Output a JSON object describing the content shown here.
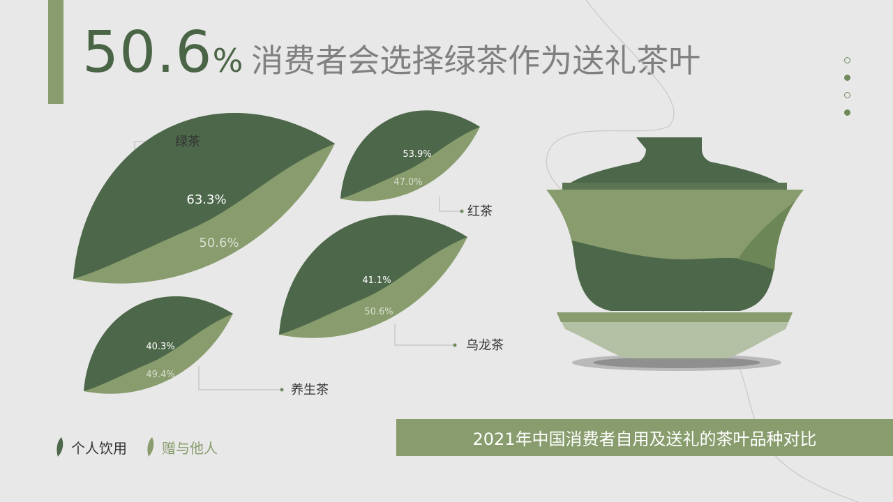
{
  "headline": {
    "number": "50.6",
    "percent_sign": "%",
    "text": "消费者会选择绿茶作为送礼茶叶"
  },
  "caption": "2021年中国消费者自用及送礼的茶叶品种对比",
  "legend": {
    "personal": "个人饮用",
    "gift": "赠与他人"
  },
  "colors": {
    "personal": "#4c6749",
    "gift": "#889c6d",
    "accent": "#889c6d",
    "background": "#e8e8e8",
    "headline_number": "#4a6446",
    "headline_text": "#808080"
  },
  "chart_data": {
    "type": "bar",
    "categories": [
      "绿茶",
      "红茶",
      "乌龙茶",
      "养生茶"
    ],
    "series": [
      {
        "name": "个人饮用",
        "values": [
          63.3,
          53.9,
          41.1,
          40.3
        ]
      },
      {
        "name": "赠与他人",
        "values": [
          50.6,
          47.0,
          50.6,
          49.4
        ]
      }
    ],
    "value_labels": {
      "个人饮用": [
        "63.3%",
        "53.9%",
        "41.1%",
        "40.3%"
      ],
      "赠与他人": [
        "50.6%",
        "47.0%",
        "50.6%",
        "49.4%"
      ]
    },
    "title": "2021年中国消费者自用及送礼的茶叶品种对比",
    "legend_position": "bottom-left"
  }
}
